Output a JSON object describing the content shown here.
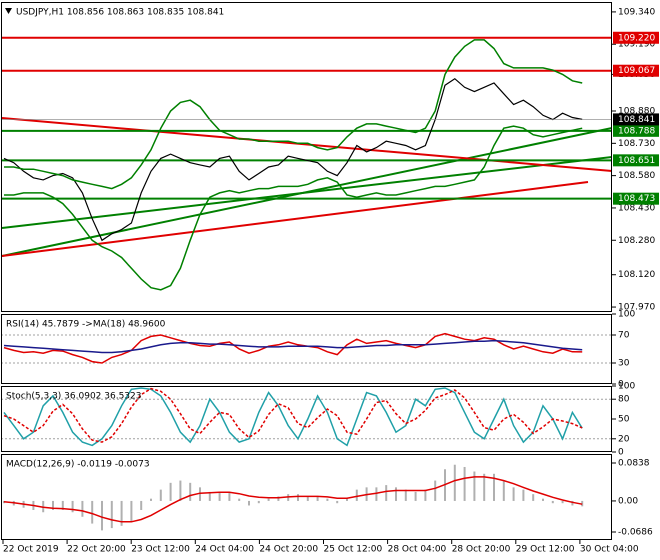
{
  "chart_data": [
    {
      "type": "line",
      "title": "USDJPY,H1  108.856 108.863 108.835 108.841",
      "ylim": [
        107.947,
        109.386
      ],
      "yticks": [
        {
          "value": 109.34,
          "label": "109.340"
        },
        {
          "value": 109.19,
          "label": "109.190"
        },
        {
          "value": 109.05,
          "label": "109.050"
        },
        {
          "value": 108.88,
          "label": "108.880"
        },
        {
          "value": 108.73,
          "label": "108.730"
        },
        {
          "value": 108.58,
          "label": "108.580"
        },
        {
          "value": 108.43,
          "label": "108.430"
        },
        {
          "value": 108.28,
          "label": "108.280"
        },
        {
          "value": 108.12,
          "label": "108.120"
        },
        {
          "value": 107.97,
          "label": "107.970"
        }
      ],
      "levels": [
        {
          "value": 109.22,
          "label": "109.220",
          "color": "#e00000"
        },
        {
          "value": 109.067,
          "label": "109.067",
          "color": "#e00000"
        },
        {
          "value": 108.788,
          "label": "108.788",
          "color": "#008000"
        },
        {
          "value": 108.651,
          "label": "108.651",
          "color": "#008000"
        },
        {
          "value": 108.473,
          "label": "108.473",
          "color": "#008000"
        }
      ],
      "last_price": {
        "value": 108.841,
        "label": "108.841",
        "color": "#000000"
      },
      "time_labels": [
        "22 Oct 2019",
        "22 Oct 20:00",
        "23 Oct 12:00",
        "24 Oct 04:00",
        "24 Oct 20:00",
        "25 Oct 12:00",
        "28 Oct 04:00",
        "28 Oct 20:00",
        "29 Oct 12:00",
        "30 Oct 04:00"
      ],
      "series": [
        {
          "color": "#000000",
          "values": [
            108.66,
            108.64,
            108.6,
            108.57,
            108.56,
            108.58,
            108.59,
            108.57,
            108.5,
            108.38,
            108.28,
            108.31,
            108.33,
            108.36,
            108.5,
            108.6,
            108.66,
            108.68,
            108.66,
            108.64,
            108.63,
            108.62,
            108.66,
            108.67,
            108.6,
            108.56,
            108.59,
            108.62,
            108.63,
            108.67,
            108.66,
            108.65,
            108.64,
            108.6,
            108.58,
            108.64,
            108.72,
            108.69,
            108.71,
            108.74,
            108.73,
            108.72,
            108.7,
            108.72,
            108.84,
            109.0,
            109.03,
            108.99,
            108.97,
            108.99,
            109.01,
            108.96,
            108.91,
            108.93,
            108.9,
            108.86,
            108.84,
            108.87,
            108.85,
            108.841
          ]
        },
        {
          "color": "#008000",
          "values": [
            108.62,
            108.62,
            108.61,
            108.61,
            108.6,
            108.59,
            108.58,
            108.56,
            108.55,
            108.54,
            108.53,
            108.52,
            108.54,
            108.57,
            108.63,
            108.7,
            108.8,
            108.88,
            108.92,
            108.93,
            108.9,
            108.84,
            108.79,
            108.77,
            108.75,
            108.75,
            108.74,
            108.74,
            108.74,
            108.74,
            108.73,
            108.73,
            108.71,
            108.7,
            108.71,
            108.76,
            108.8,
            108.82,
            108.82,
            108.81,
            108.8,
            108.79,
            108.78,
            108.8,
            108.88,
            109.05,
            109.13,
            109.18,
            109.21,
            109.21,
            109.17,
            109.1,
            109.08,
            109.08,
            109.08,
            109.08,
            109.07,
            109.05,
            109.02,
            109.01
          ]
        },
        {
          "color": "#008000",
          "values": [
            108.49,
            108.49,
            108.5,
            108.5,
            108.5,
            108.48,
            108.45,
            108.4,
            108.34,
            108.28,
            108.25,
            108.23,
            108.2,
            108.15,
            108.1,
            108.06,
            108.05,
            108.07,
            108.15,
            108.28,
            108.4,
            108.48,
            108.5,
            108.51,
            108.5,
            108.51,
            108.52,
            108.52,
            108.53,
            108.53,
            108.53,
            108.54,
            108.56,
            108.57,
            108.55,
            108.49,
            108.48,
            108.49,
            108.5,
            108.49,
            108.49,
            108.5,
            108.51,
            108.52,
            108.53,
            108.53,
            108.54,
            108.55,
            108.56,
            108.62,
            108.72,
            108.8,
            108.81,
            108.8,
            108.77,
            108.76,
            108.77,
            108.78,
            108.79,
            108.8
          ]
        }
      ]
    },
    {
      "type": "line",
      "title": "RSI(14) 45.7879 ->MA(18) 48.9600",
      "ylim": [
        0,
        100
      ],
      "yticks": [
        100,
        70,
        30,
        0
      ],
      "dashed": [
        70,
        30
      ],
      "series": [
        {
          "color": "#e00000",
          "values": [
            52,
            48,
            45,
            46,
            44,
            48,
            47,
            42,
            38,
            32,
            30,
            38,
            42,
            48,
            62,
            68,
            70,
            66,
            62,
            58,
            55,
            54,
            58,
            60,
            50,
            44,
            48,
            54,
            56,
            60,
            56,
            54,
            52,
            46,
            42,
            56,
            64,
            58,
            60,
            62,
            58,
            55,
            52,
            56,
            68,
            72,
            68,
            64,
            62,
            66,
            64,
            56,
            50,
            54,
            50,
            46,
            44,
            50,
            46,
            45.7879
          ]
        },
        {
          "color": "#1a1a8c",
          "values": [
            55,
            54,
            53,
            52,
            51,
            50,
            49,
            48,
            47,
            46,
            45,
            45,
            46,
            48,
            50,
            53,
            56,
            58,
            59,
            59,
            58,
            57,
            57,
            56,
            55,
            54,
            53,
            53,
            53,
            54,
            54,
            54,
            54,
            53,
            52,
            52,
            53,
            54,
            55,
            55,
            56,
            56,
            56,
            56,
            57,
            58,
            59,
            60,
            61,
            61,
            62,
            61,
            60,
            59,
            57,
            55,
            53,
            51,
            50,
            48.96
          ]
        }
      ]
    },
    {
      "type": "line",
      "title": "Stoch(5,3,3) 36.0902 36.5323",
      "ylim": [
        0,
        100
      ],
      "yticks": [
        100,
        80,
        50,
        20,
        0
      ],
      "dashed": [
        80,
        20
      ],
      "series": [
        {
          "color": "#20a0a8",
          "values": [
            60,
            40,
            20,
            30,
            70,
            85,
            60,
            30,
            15,
            10,
            20,
            40,
            70,
            95,
            97,
            95,
            85,
            60,
            30,
            15,
            40,
            80,
            60,
            30,
            15,
            20,
            60,
            90,
            70,
            40,
            20,
            50,
            85,
            60,
            20,
            10,
            50,
            90,
            85,
            60,
            30,
            40,
            80,
            70,
            95,
            97,
            90,
            60,
            30,
            20,
            50,
            80,
            40,
            15,
            30,
            70,
            50,
            20,
            60,
            36.0902
          ]
        },
        {
          "color": "#e00000",
          "dash": true,
          "values": [
            55,
            50,
            40,
            30,
            40,
            62,
            72,
            58,
            35,
            18,
            15,
            23,
            43,
            68,
            87,
            96,
            92,
            80,
            58,
            35,
            28,
            45,
            60,
            57,
            35,
            22,
            32,
            57,
            73,
            67,
            43,
            37,
            52,
            65,
            55,
            30,
            27,
            50,
            75,
            78,
            58,
            43,
            50,
            63,
            82,
            87,
            94,
            82,
            60,
            37,
            33,
            50,
            57,
            45,
            28,
            38,
            50,
            47,
            43,
            36.5323
          ]
        }
      ]
    },
    {
      "type": "bar",
      "title": "MACD(12,26,9) -0.0119 -0.0073",
      "ylim": [
        -0.0863,
        0.1037
      ],
      "yticks": [
        0.0838,
        {
          "value": 0,
          "label": "0.00"
        },
        -0.0686
      ],
      "color": "#b0b0b0",
      "values": [
        -0.005,
        -0.01,
        -0.015,
        -0.02,
        -0.025,
        -0.02,
        -0.02,
        -0.025,
        -0.035,
        -0.05,
        -0.065,
        -0.06,
        -0.055,
        -0.045,
        -0.02,
        0.005,
        0.025,
        0.04,
        0.045,
        0.04,
        0.03,
        0.02,
        0.02,
        0.02,
        0.005,
        -0.01,
        -0.005,
        0.005,
        0.01,
        0.015,
        0.015,
        0.01,
        0.01,
        0.005,
        -0.005,
        0.005,
        0.025,
        0.03,
        0.03,
        0.035,
        0.03,
        0.025,
        0.02,
        0.025,
        0.045,
        0.07,
        0.08,
        0.075,
        0.065,
        0.06,
        0.06,
        0.045,
        0.03,
        0.025,
        0.015,
        0.005,
        -0.005,
        -0.005,
        -0.01,
        -0.0119
      ],
      "series": [
        {
          "color": "#e00000",
          "values": [
            -0.002,
            -0.004,
            -0.007,
            -0.01,
            -0.014,
            -0.016,
            -0.017,
            -0.019,
            -0.022,
            -0.028,
            -0.036,
            -0.042,
            -0.046,
            -0.046,
            -0.041,
            -0.032,
            -0.02,
            -0.008,
            0.003,
            0.012,
            0.017,
            0.018,
            0.019,
            0.019,
            0.016,
            0.011,
            0.008,
            0.007,
            0.007,
            0.009,
            0.01,
            0.01,
            0.01,
            0.009,
            0.006,
            0.006,
            0.01,
            0.014,
            0.017,
            0.021,
            0.023,
            0.023,
            0.023,
            0.023,
            0.028,
            0.036,
            0.045,
            0.05,
            0.053,
            0.053,
            0.05,
            0.045,
            0.038,
            0.03,
            0.022,
            0.015,
            0.008,
            0.002,
            -0.003,
            -0.0073
          ]
        }
      ]
    }
  ]
}
